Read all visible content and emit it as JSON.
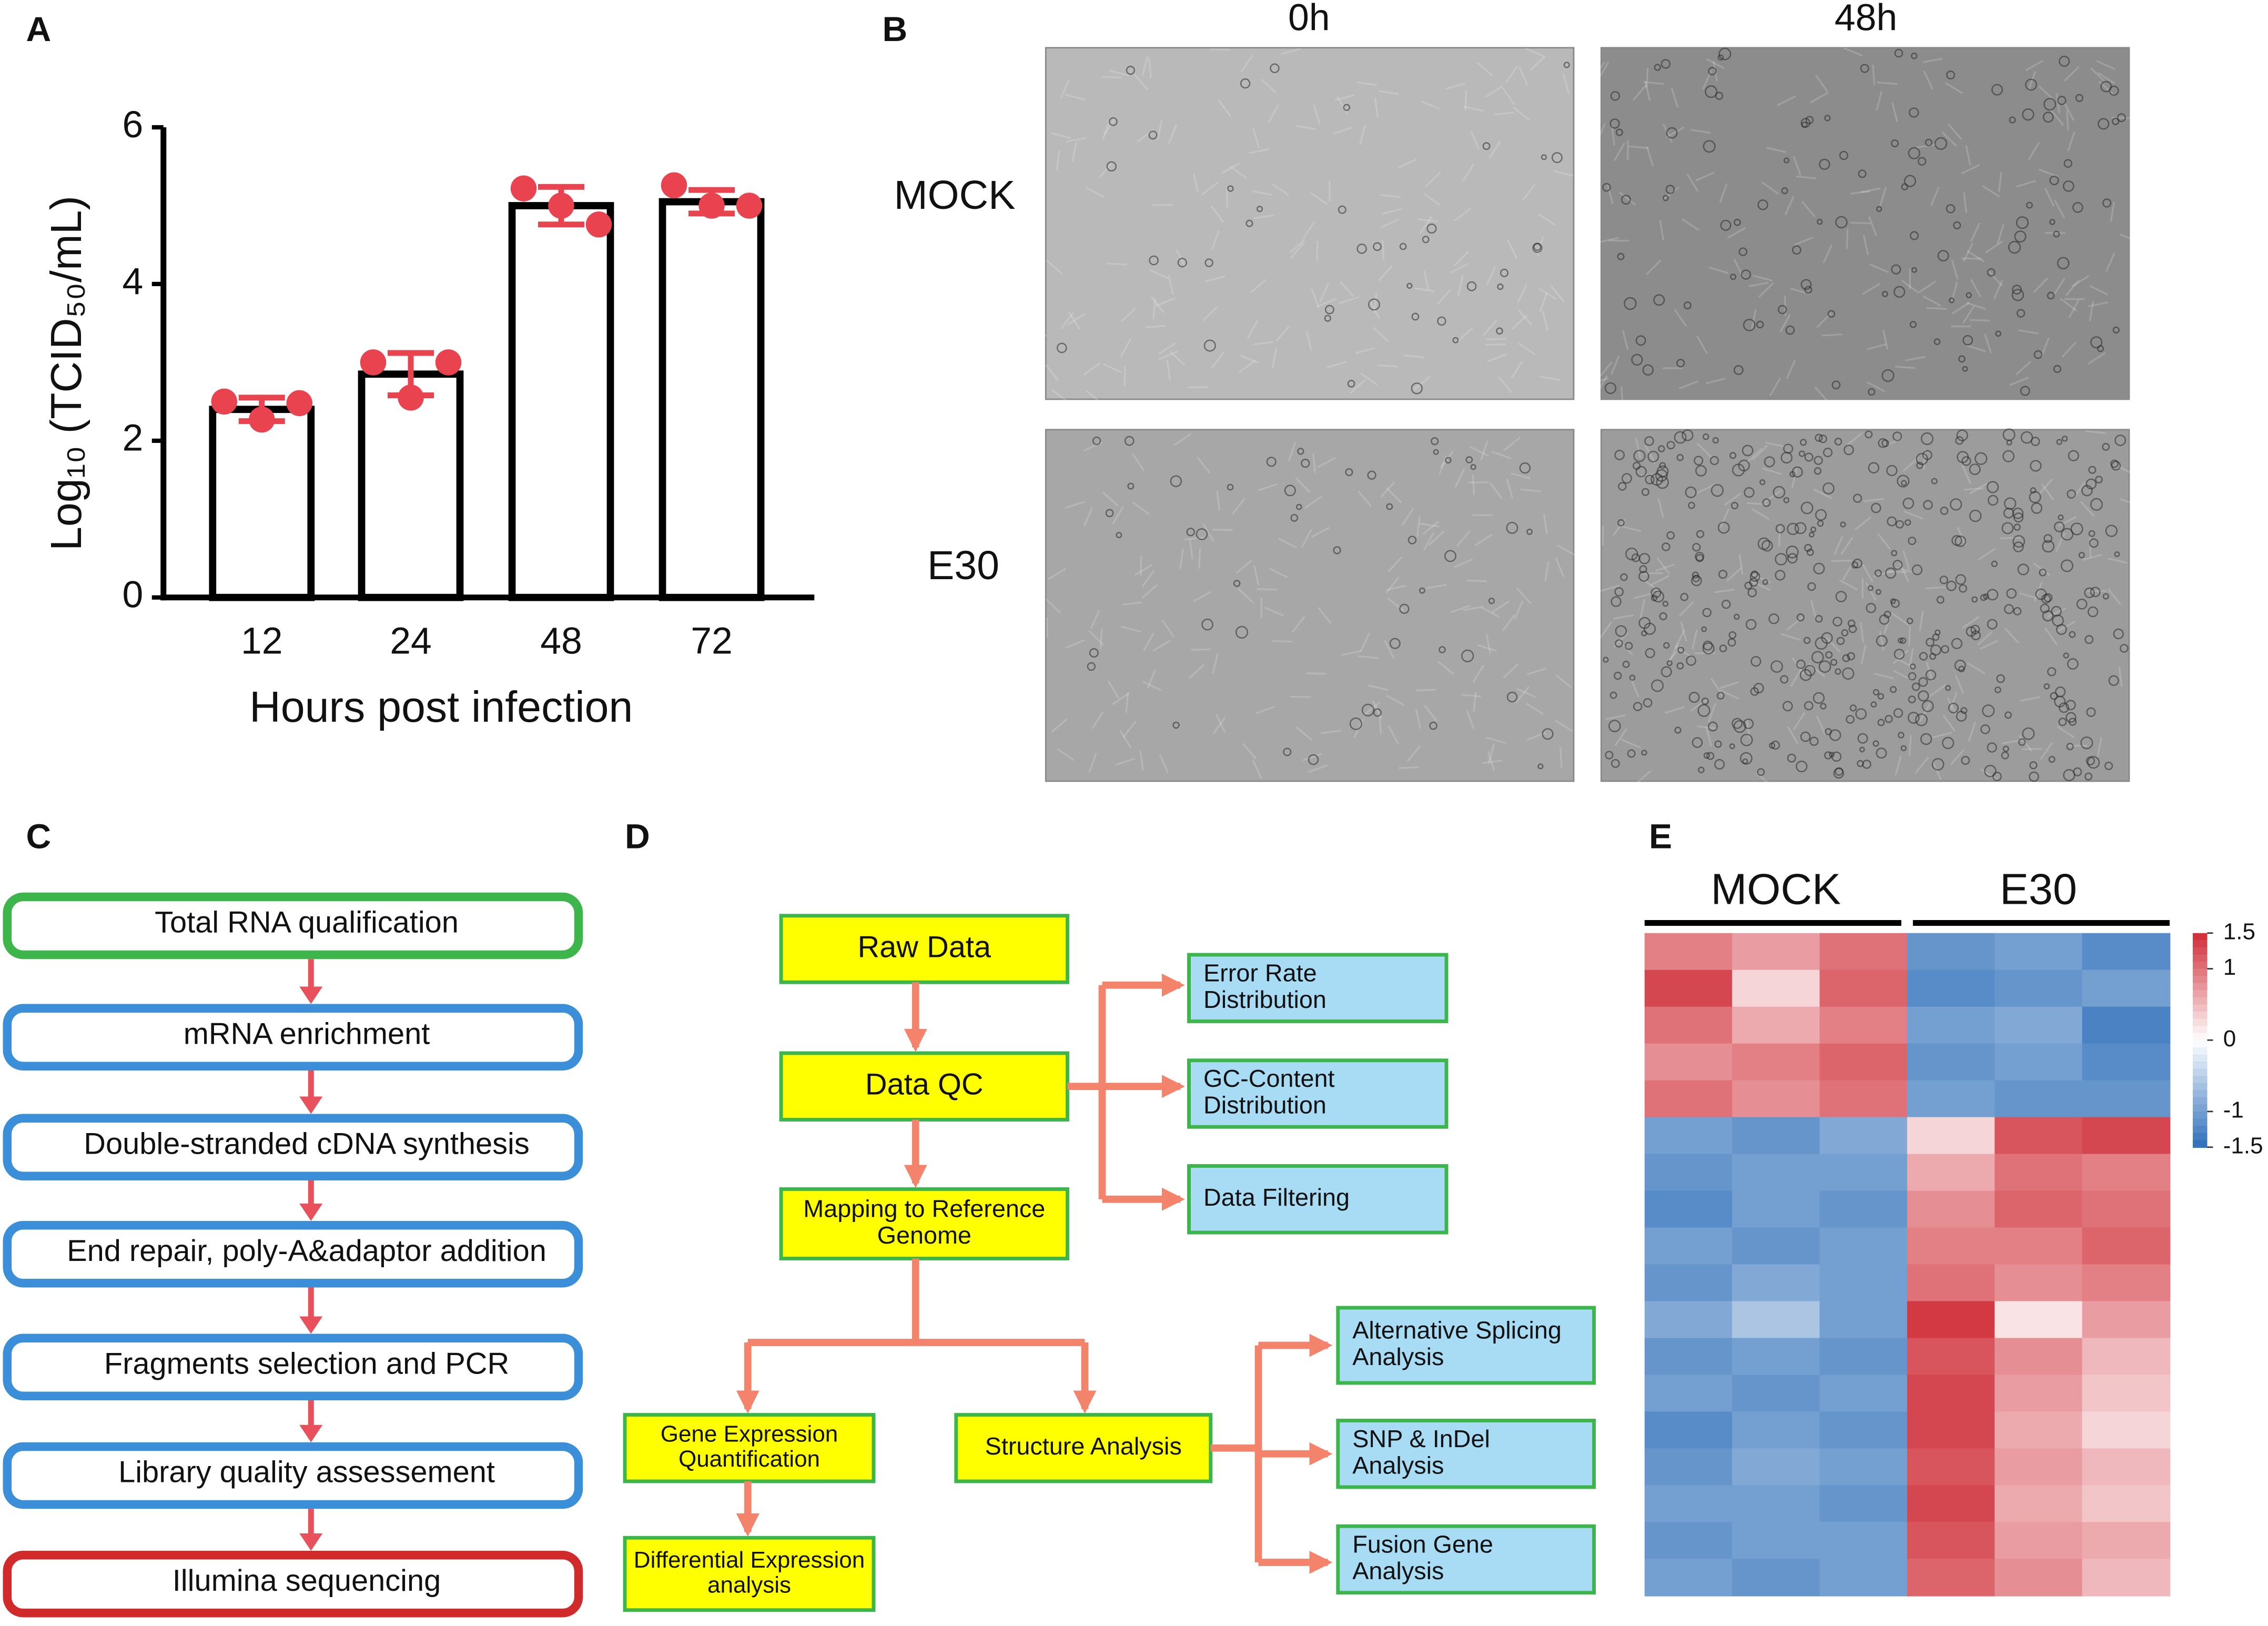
{
  "panel_labels": [
    "A",
    "B",
    "C",
    "D",
    "E"
  ],
  "chart_data": [
    {
      "type": "bar",
      "categories": [
        "12",
        "24",
        "48",
        "72"
      ],
      "values": [
        2.4,
        2.85,
        5.0,
        5.05
      ],
      "errors": [
        0.15,
        0.27,
        0.24,
        0.15
      ],
      "points": [
        [
          2.5,
          2.27,
          2.48
        ],
        [
          3.0,
          2.55,
          3.0
        ],
        [
          5.22,
          5.0,
          4.76
        ],
        [
          5.26,
          5.0,
          5.0
        ]
      ],
      "color": "#ffffff",
      "point_color": "#e8434f",
      "xlabel": "Hours post infection",
      "ylabel": "Log₁₀ (TCID₅₀/mL)",
      "ylim": [
        0,
        6
      ],
      "yticks": [
        0,
        2,
        4,
        6
      ]
    },
    {
      "type": "heatmap",
      "groups": [
        {
          "name": "MOCK",
          "columns": 3
        },
        {
          "name": "E30",
          "columns": 3
        }
      ],
      "rows": [
        [
          0.9,
          0.7,
          1.0,
          -1.1,
          -1.0,
          -1.2
        ],
        [
          1.3,
          0.3,
          1.1,
          -1.2,
          -1.1,
          -1.0
        ],
        [
          1.0,
          0.6,
          0.9,
          -1.0,
          -0.9,
          -1.3
        ],
        [
          0.8,
          0.9,
          1.1,
          -1.1,
          -1.0,
          -1.2
        ],
        [
          1.0,
          0.8,
          1.0,
          -1.0,
          -1.1,
          -1.1
        ],
        [
          -1.0,
          -1.1,
          -0.9,
          0.3,
          1.2,
          1.3
        ],
        [
          -1.1,
          -1.0,
          -1.0,
          0.6,
          1.0,
          0.9
        ],
        [
          -1.2,
          -1.0,
          -1.1,
          0.8,
          1.1,
          1.0
        ],
        [
          -1.0,
          -1.1,
          -1.0,
          0.9,
          0.9,
          1.1
        ],
        [
          -1.1,
          -0.9,
          -1.0,
          1.0,
          0.8,
          0.9
        ],
        [
          -0.9,
          -0.6,
          -1.0,
          1.4,
          0.2,
          0.7
        ],
        [
          -1.1,
          -1.0,
          -1.1,
          1.2,
          0.8,
          0.5
        ],
        [
          -1.0,
          -1.1,
          -1.0,
          1.3,
          0.7,
          0.4
        ],
        [
          -1.2,
          -1.0,
          -1.1,
          1.3,
          0.6,
          0.3
        ],
        [
          -1.1,
          -0.9,
          -1.0,
          1.2,
          0.7,
          0.5
        ],
        [
          -1.0,
          -1.0,
          -1.1,
          1.3,
          0.6,
          0.4
        ],
        [
          -1.1,
          -1.0,
          -1.0,
          1.2,
          0.7,
          0.6
        ],
        [
          -1.0,
          -1.1,
          -1.0,
          1.1,
          0.8,
          0.5
        ]
      ],
      "zlim": [
        -1.5,
        1.5
      ],
      "zticks": [
        1.5,
        1,
        0,
        -1,
        -1.5
      ],
      "colors": [
        "#2e6fba",
        "#ffffff",
        "#cf2b35"
      ]
    }
  ],
  "micrographs": {
    "columns": [
      "0h",
      "48h"
    ],
    "rows": [
      "MOCK",
      "E30"
    ]
  },
  "workflow": {
    "steps": [
      {
        "label": "Total RNA qualification",
        "color": "#3cb54a"
      },
      {
        "label": "mRNA enrichment",
        "color": "#3a8fd8"
      },
      {
        "label": "Double-stranded cDNA synthesis",
        "color": "#3a8fd8"
      },
      {
        "label": "End repair, poly-A&adaptor addition",
        "color": "#3a8fd8"
      },
      {
        "label": "Fragments selection and PCR",
        "color": "#3a8fd8"
      },
      {
        "label": "Library quality assessement",
        "color": "#3a8fd8"
      },
      {
        "label": "Illumina sequencing",
        "color": "#d12a2a"
      }
    ],
    "arrow_color": "#e8505b"
  },
  "pipeline": {
    "nodes": [
      {
        "lines": [
          "Raw Data"
        ],
        "color": "#ffff00"
      },
      {
        "lines": [
          "Data QC"
        ],
        "color": "#ffff00"
      },
      {
        "lines": [
          "Mapping to Reference",
          "Genome"
        ],
        "color": "#ffff00"
      },
      {
        "lines": [
          "Error Rate",
          "Distribution"
        ],
        "color": "#a8dcf5"
      },
      {
        "lines": [
          "GC-Content",
          "Distribution"
        ],
        "color": "#a8dcf5"
      },
      {
        "lines": [
          "Data Filtering"
        ],
        "color": "#a8dcf5"
      },
      {
        "lines": [
          "Gene Expression",
          "Quantification"
        ],
        "color": "#ffff00"
      },
      {
        "lines": [
          "Differential Expression",
          "analysis"
        ],
        "color": "#ffff00"
      },
      {
        "lines": [
          "Structure Analysis"
        ],
        "color": "#ffff00"
      },
      {
        "lines": [
          "Alternative Splicing",
          "Analysis"
        ],
        "color": "#a8dcf5"
      },
      {
        "lines": [
          "SNP & InDel",
          "Analysis"
        ],
        "color": "#a8dcf5"
      },
      {
        "lines": [
          "Fusion Gene",
          "Analysis"
        ],
        "color": "#a8dcf5"
      }
    ]
  }
}
